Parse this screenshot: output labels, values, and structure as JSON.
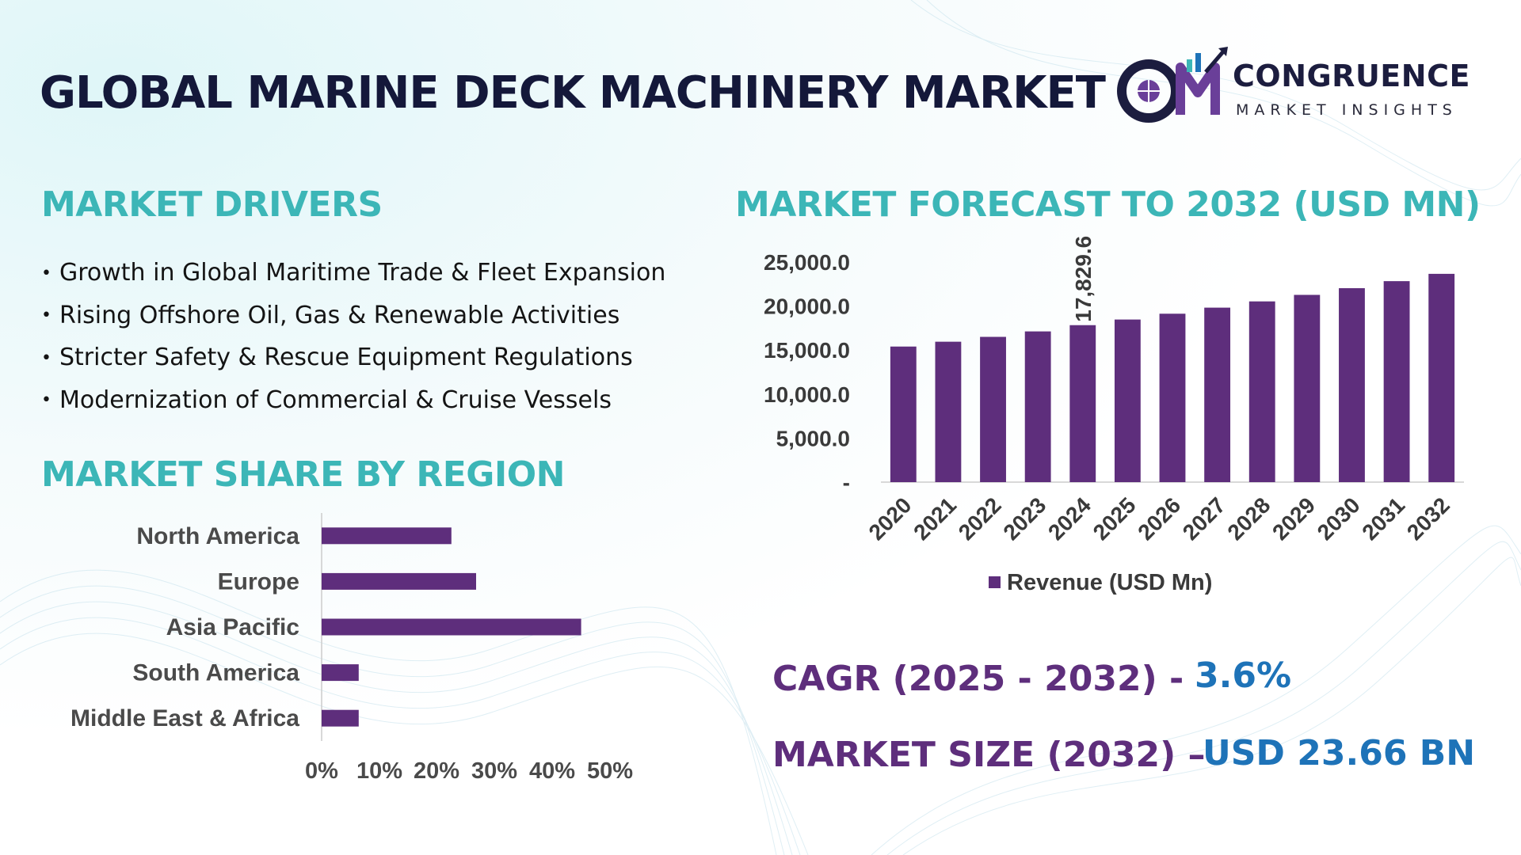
{
  "header": {
    "title": "GLOBAL MARINE DECK MACHINERY MARKET",
    "logo_name": "CONGRUENCE",
    "logo_subtitle": "MARKET INSIGHTS",
    "logo_mark": "CM"
  },
  "drivers": {
    "title": "MARKET DRIVERS",
    "items": [
      "Growth in Global Maritime Trade & Fleet Expansion",
      "Rising Offshore Oil, Gas & Renewable Activities",
      "Stricter Safety & Rescue Equipment Regulations",
      "Modernization of Commercial & Cruise Vessels"
    ]
  },
  "region": {
    "title": "MARKET SHARE BY REGION"
  },
  "forecast": {
    "title": "MARKET FORECAST TO 2032 (USD MN)"
  },
  "cagr": {
    "label": "CAGR (2025 - 2032) -",
    "value": "3.6%"
  },
  "market_size": {
    "label": "MARKET SIZE (2032) –",
    "value": "USD 23.66 BN"
  },
  "colors": {
    "bar": "#5e2e7c",
    "title": "#3cb6b7",
    "accent": "#1e73b8",
    "dark": "#14183a"
  },
  "chart_data": [
    {
      "type": "bar",
      "orientation": "vertical",
      "title": "MARKET FORECAST TO 2032 (USD MN)",
      "categories": [
        "2020",
        "2021",
        "2022",
        "2023",
        "2024",
        "2025",
        "2026",
        "2027",
        "2028",
        "2029",
        "2030",
        "2031",
        "2032"
      ],
      "series": [
        {
          "name": "Revenue (USD Mn)",
          "values": [
            15400,
            15950,
            16500,
            17120,
            17829.6,
            18470,
            19130,
            19820,
            20530,
            21270,
            22030,
            22830,
            23660
          ]
        }
      ],
      "data_labels": [
        {
          "category": "2024",
          "text": "17,829.6"
        }
      ],
      "y_ticks": [
        "-",
        "5,000.0",
        "10,000.0",
        "15,000.0",
        "20,000.0",
        "25,000.0"
      ],
      "ylim": [
        0,
        25000
      ],
      "grid": false,
      "legend": "bottom"
    },
    {
      "type": "bar",
      "orientation": "horizontal",
      "title": "MARKET SHARE BY REGION",
      "categories": [
        "North America",
        "Europe",
        "Asia Pacific",
        "South America",
        "Middle East & Africa"
      ],
      "values": [
        21,
        25,
        42,
        6,
        6
      ],
      "x_ticks": [
        "0%",
        "10%",
        "20%",
        "30%",
        "40%",
        "50%"
      ],
      "xlim": [
        0,
        50
      ],
      "grid": false
    }
  ]
}
